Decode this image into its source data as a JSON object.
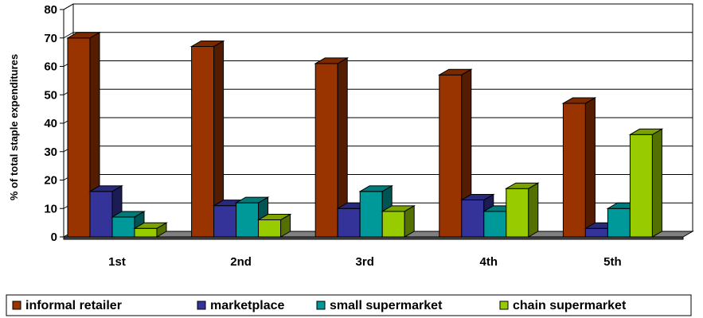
{
  "chart_data": {
    "type": "bar",
    "title": "",
    "xlabel": "",
    "ylabel": "% of total staple expenditures",
    "ylim": [
      0,
      80
    ],
    "yticks": [
      0,
      10,
      20,
      30,
      40,
      50,
      60,
      70,
      80
    ],
    "categories": [
      "1st",
      "2nd",
      "3rd",
      "4th",
      "5th"
    ],
    "series": [
      {
        "name": "informal retailer",
        "values": [
          70,
          67,
          61,
          57,
          47
        ]
      },
      {
        "name": "marketplace",
        "values": [
          16,
          11,
          10,
          13,
          3
        ]
      },
      {
        "name": "small supermarket",
        "values": [
          7,
          12,
          16,
          9,
          10
        ]
      },
      {
        "name": "chain supermarket",
        "values": [
          3,
          6,
          9,
          17,
          36
        ]
      }
    ],
    "grid": true,
    "legend_position": "bottom",
    "colors": {
      "informal retailer": "#993300",
      "marketplace": "#333399",
      "small supermarket": "#009999",
      "chain supermarket": "#99cc00",
      "floor": "#808080"
    }
  }
}
